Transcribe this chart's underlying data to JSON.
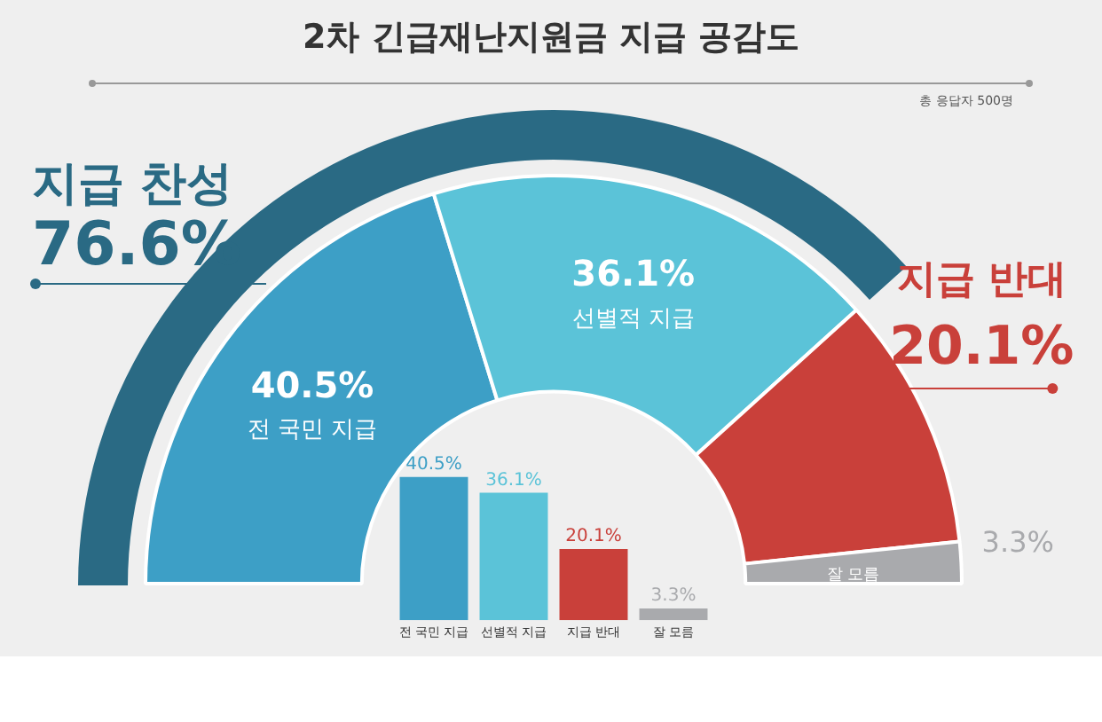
{
  "chart_data": [
    {
      "type": "donut",
      "title": "2차 긴급재난지원금 지급 공감도",
      "subtitle": "총 응답자 500명",
      "categories": [
        "전 국민 지급",
        "선별적 지급",
        "지급 반대",
        "잘 모름"
      ],
      "values": [
        40.5,
        36.1,
        20.1,
        3.3
      ],
      "colors": [
        "#3d9fc6",
        "#5bc3d8",
        "#c9403a",
        "#a9aaad"
      ],
      "value_labels": [
        "40.5%",
        "36.1%",
        "20.1%",
        "3.3%"
      ],
      "annotations": [
        "지급 찬성",
        "76.6%"
      ]
    },
    {
      "type": "bar",
      "categories": [
        "전 국민 지급",
        "선별적 지급",
        "지급 반대",
        "잘 모름"
      ],
      "values": [
        40.5,
        36.1,
        20.1,
        3.3
      ],
      "colors": [
        "#3d9fc6",
        "#5bc3d8",
        "#c9403a",
        "#a9aaad"
      ],
      "value_labels": [
        "40.5%",
        "36.1%",
        "20.1%",
        "3.3%"
      ],
      "tick_labels": "x"
    }
  ]
}
